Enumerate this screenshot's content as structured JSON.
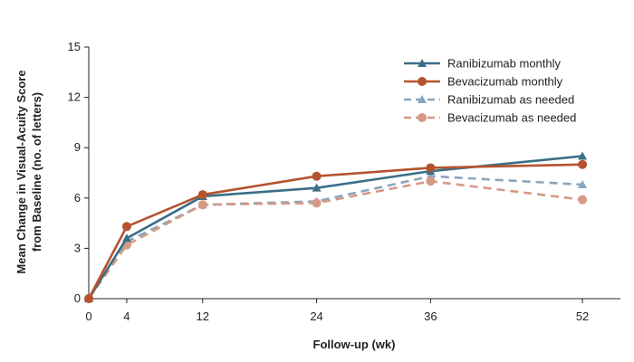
{
  "chart_data": {
    "type": "line",
    "xlabel": "Follow-up (wk)",
    "ylabel_line1": "Mean Change in Visual-Acuity Score",
    "ylabel_line2": "from Baseline (no. of letters)",
    "x_ticks": [
      0,
      4,
      12,
      24,
      36,
      52
    ],
    "y_ticks": [
      0,
      3,
      6,
      9,
      12,
      15
    ],
    "xlim": [
      0,
      56
    ],
    "ylim": [
      0,
      15
    ],
    "grid": false,
    "legend_position": "top-right",
    "x": [
      0,
      4,
      12,
      24,
      36,
      52
    ],
    "series": [
      {
        "name": "Ranibizumab monthly",
        "values": [
          0,
          3.6,
          6.1,
          6.6,
          7.6,
          8.5
        ],
        "color": "#3a6f86",
        "dashed": false,
        "marker": "triangle"
      },
      {
        "name": "Bevacizumab monthly",
        "values": [
          0,
          4.3,
          6.2,
          7.3,
          7.8,
          8.0
        ],
        "color": "#b5532f",
        "dashed": false,
        "marker": "circle"
      },
      {
        "name": "Ranibizumab as needed",
        "values": [
          0,
          3.4,
          5.6,
          5.8,
          7.3,
          6.8
        ],
        "color": "#8aa6bd",
        "dashed": true,
        "marker": "triangle"
      },
      {
        "name": "Bevacizumab as needed",
        "values": [
          0,
          3.2,
          5.6,
          5.7,
          7.0,
          5.9
        ],
        "color": "#d69a84",
        "dashed": true,
        "marker": "circle"
      }
    ]
  }
}
